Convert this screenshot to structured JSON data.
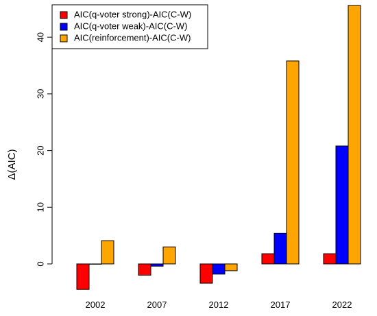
{
  "chart_data": {
    "type": "bar",
    "categories": [
      "2002",
      "2007",
      "2012",
      "2017",
      "2022"
    ],
    "series": [
      {
        "name": "AIC(q-voter strong)-AIC(C-W)",
        "color": "#ff0000",
        "values": [
          -4.5,
          -2.0,
          -3.4,
          1.8,
          1.8
        ]
      },
      {
        "name": "AIC(q-voter weak)-AIC(C-W)",
        "color": "#0000ff",
        "values": [
          0.0,
          -0.4,
          -1.8,
          5.4,
          20.8
        ]
      },
      {
        "name": "AIC(reinforcement)-AIC(C-W)",
        "color": "#ffa500",
        "values": [
          4.1,
          3.0,
          -1.2,
          35.8,
          45.6
        ]
      }
    ],
    "ylabel": "Δ(AIC)",
    "xlabel": "",
    "title": "",
    "ylim": [
      -5,
      46
    ],
    "yticks": [
      0,
      10,
      20,
      30,
      40
    ],
    "legend_position": "top-left",
    "grid": false
  }
}
